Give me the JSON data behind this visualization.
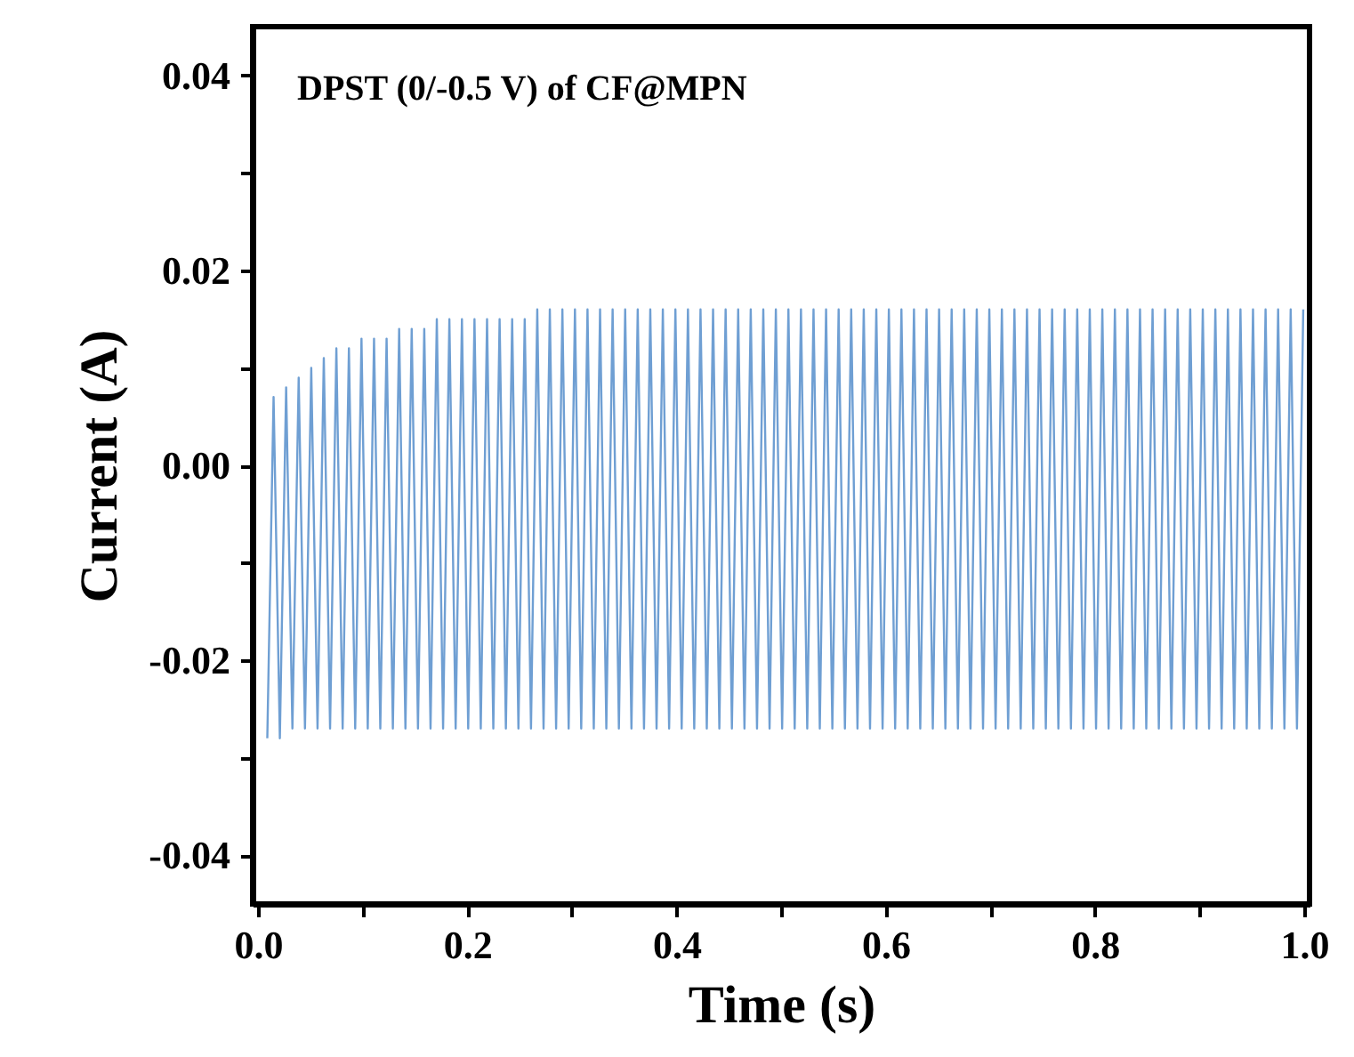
{
  "chart_data": {
    "type": "line",
    "xlabel": "Time (s)",
    "ylabel": "Current (A)",
    "annotations": [
      "DPST (0/-0.5 V) of  CF@MPN"
    ],
    "xlim": [
      -0.005,
      1.005
    ],
    "ylim": [
      -0.045,
      0.045
    ],
    "xticks": [
      {
        "value": 0,
        "label": "0.0"
      },
      {
        "value": 0.1,
        "label": null
      },
      0.2,
      {
        "value": 0.3,
        "label": null
      },
      0.4,
      {
        "value": 0.5,
        "label": null
      },
      0.6,
      {
        "value": 0.7,
        "label": null
      },
      0.8,
      {
        "value": 0.9,
        "label": null
      },
      {
        "value": 1,
        "label": "1.0"
      }
    ],
    "yticks": [
      -0.04,
      {
        "value": -0.03,
        "label": null
      },
      -0.02,
      {
        "value": -0.01,
        "label": null
      },
      {
        "value": 0,
        "label": "0.00"
      },
      {
        "value": 0.01,
        "label": null
      },
      0.02,
      {
        "value": 0.03,
        "label": null
      },
      0.04
    ],
    "grid": false,
    "marker": "none",
    "line_style": "solid",
    "series": [
      {
        "color": "#6f9fd3",
        "x": [
          0.009,
          0.015,
          0.021,
          0.027,
          0.033,
          0.039,
          0.045,
          0.051,
          0.057,
          0.063,
          0.069,
          0.075,
          0.081,
          0.087,
          0.093,
          0.099,
          0.105,
          0.111,
          0.117,
          0.123,
          0.129,
          0.135,
          0.141,
          0.147,
          0.153,
          0.159,
          0.165,
          0.171,
          0.177,
          0.183,
          0.189,
          0.195,
          0.201,
          0.207,
          0.213,
          0.219,
          0.225,
          0.231,
          0.237,
          0.243,
          0.249,
          0.255,
          0.261,
          0.267,
          0.273,
          0.279,
          0.285,
          0.291,
          0.297,
          0.303,
          0.309,
          0.315,
          0.321,
          0.327,
          0.333,
          0.339,
          0.345,
          0.351,
          0.357,
          0.363,
          0.369,
          0.375,
          0.381,
          0.387,
          0.393,
          0.399,
          0.405,
          0.411,
          0.417,
          0.423,
          0.429,
          0.435,
          0.441,
          0.447,
          0.453,
          0.459,
          0.465,
          0.471,
          0.477,
          0.483,
          0.489,
          0.495,
          0.501,
          0.507,
          0.513,
          0.519,
          0.525,
          0.531,
          0.537,
          0.543,
          0.549,
          0.555,
          0.561,
          0.567,
          0.573,
          0.579,
          0.585,
          0.591,
          0.597,
          0.603,
          0.609,
          0.615,
          0.621,
          0.627,
          0.633,
          0.639,
          0.645,
          0.651,
          0.657,
          0.663,
          0.669,
          0.675,
          0.681,
          0.687,
          0.693,
          0.699,
          0.705,
          0.711,
          0.717,
          0.723,
          0.729,
          0.735,
          0.741,
          0.747,
          0.753,
          0.759,
          0.765,
          0.771,
          0.777,
          0.783,
          0.789,
          0.795,
          0.801,
          0.807,
          0.813,
          0.819,
          0.825,
          0.831,
          0.837,
          0.843,
          0.849,
          0.855,
          0.861,
          0.867,
          0.873,
          0.879,
          0.885,
          0.891,
          0.897,
          0.903,
          0.909,
          0.915,
          0.921,
          0.927,
          0.933,
          0.939,
          0.945,
          0.951,
          0.957,
          0.963,
          0.969,
          0.975,
          0.981,
          0.987,
          0.993,
          0.999
        ],
        "values": [
          -0.028,
          0.007,
          -0.028,
          0.008,
          -0.027,
          0.009,
          -0.027,
          0.01,
          -0.027,
          0.011,
          -0.027,
          0.012,
          -0.027,
          0.012,
          -0.027,
          0.013,
          -0.027,
          0.013,
          -0.027,
          0.013,
          -0.027,
          0.014,
          -0.027,
          0.014,
          -0.027,
          0.014,
          -0.027,
          0.015,
          -0.027,
          0.015,
          -0.027,
          0.015,
          -0.027,
          0.015,
          -0.027,
          0.015,
          -0.027,
          0.015,
          -0.027,
          0.015,
          -0.027,
          0.015,
          -0.027,
          0.016,
          -0.027,
          0.016,
          -0.027,
          0.016,
          -0.027,
          0.016,
          -0.027,
          0.016,
          -0.027,
          0.016,
          -0.027,
          0.016,
          -0.027,
          0.016,
          -0.027,
          0.016,
          -0.027,
          0.016,
          -0.027,
          0.016,
          -0.027,
          0.016,
          -0.027,
          0.016,
          -0.027,
          0.016,
          -0.027,
          0.016,
          -0.027,
          0.016,
          -0.027,
          0.016,
          -0.027,
          0.016,
          -0.027,
          0.016,
          -0.027,
          0.016,
          -0.027,
          0.016,
          -0.027,
          0.016,
          -0.027,
          0.016,
          -0.027,
          0.016,
          -0.027,
          0.016,
          -0.027,
          0.016,
          -0.027,
          0.016,
          -0.027,
          0.016,
          -0.027,
          0.016,
          -0.027,
          0.016,
          -0.027,
          0.016,
          -0.027,
          0.016,
          -0.027,
          0.016,
          -0.027,
          0.016,
          -0.027,
          0.016,
          -0.027,
          0.016,
          -0.027,
          0.016,
          -0.027,
          0.016,
          -0.027,
          0.016,
          -0.027,
          0.016,
          -0.027,
          0.016,
          -0.027,
          0.016,
          -0.027,
          0.016,
          -0.027,
          0.016,
          -0.027,
          0.016,
          -0.027,
          0.016,
          -0.027,
          0.016,
          -0.027,
          0.016,
          -0.027,
          0.016,
          -0.027,
          0.016,
          -0.027,
          0.016,
          -0.027,
          0.016,
          -0.027,
          0.016,
          -0.027,
          0.016,
          -0.027,
          0.016,
          -0.027,
          0.016,
          -0.027,
          0.016,
          -0.027,
          0.016,
          -0.027,
          0.016,
          -0.027,
          0.016,
          -0.027,
          0.016,
          -0.027,
          0.016
        ]
      }
    ]
  }
}
